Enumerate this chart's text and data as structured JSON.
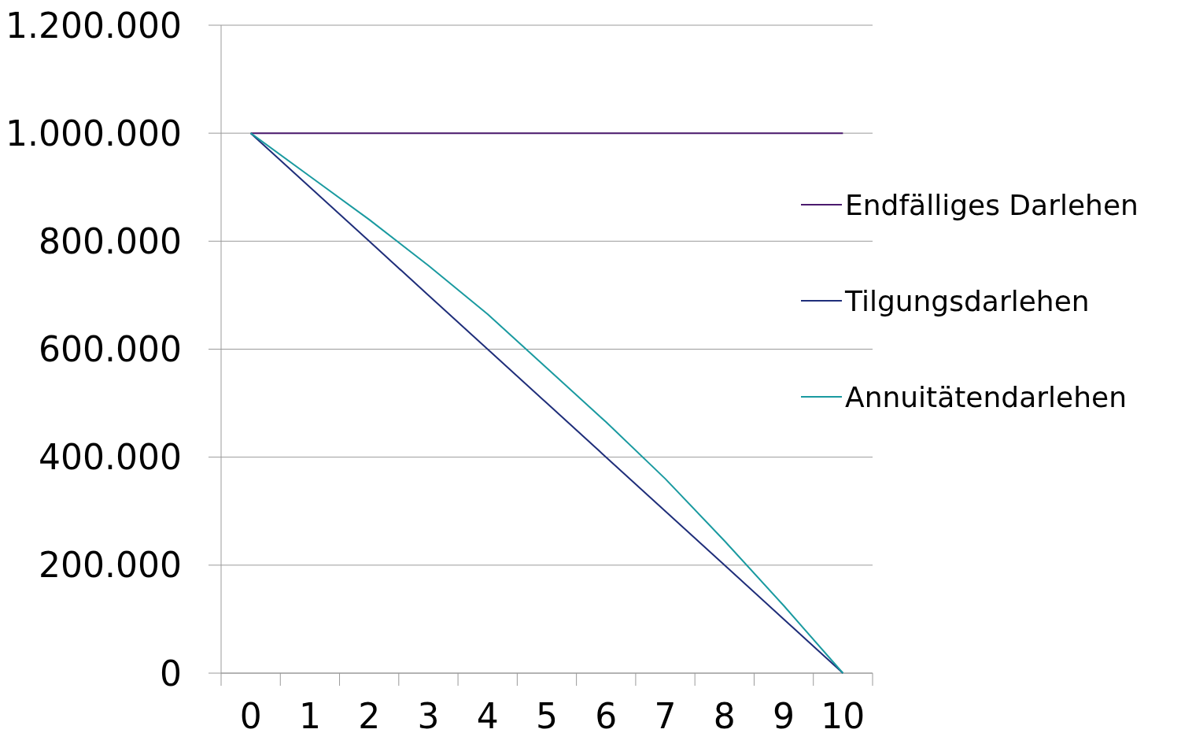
{
  "chart_data": {
    "type": "line",
    "categories": [
      "0",
      "1",
      "2",
      "3",
      "4",
      "5",
      "6",
      "7",
      "8",
      "9",
      "10"
    ],
    "series": [
      {
        "name": "Endfälliges Darlehen",
        "color": "#4b1a6e",
        "values": [
          1000000,
          1000000,
          1000000,
          1000000,
          1000000,
          1000000,
          1000000,
          1000000,
          1000000,
          1000000,
          1000000
        ]
      },
      {
        "name": "Tilgungsdarlehen",
        "color": "#1f2e7a",
        "values": [
          1000000,
          900000,
          800000,
          700000,
          600000,
          500000,
          400000,
          300000,
          200000,
          100000,
          0
        ]
      },
      {
        "name": "Annuitätendarlehen",
        "color": "#1a9aa0",
        "values": [
          1000000,
          920000,
          840000,
          755000,
          665000,
          565000,
          465000,
          360000,
          245000,
          125000,
          0
        ]
      }
    ],
    "ylim": [
      0,
      1200000
    ],
    "yticks": [
      {
        "value": 0,
        "label": "0"
      },
      {
        "value": 200000,
        "label": "200.000"
      },
      {
        "value": 400000,
        "label": "400.000"
      },
      {
        "value": 600000,
        "label": "600.000"
      },
      {
        "value": 800000,
        "label": "800.000"
      },
      {
        "value": 1000000,
        "label": "1.000.000"
      },
      {
        "value": 1200000,
        "label": "1.200.000"
      }
    ],
    "grid": "y",
    "legend": "right",
    "marker": "none",
    "line_style": "solid"
  }
}
